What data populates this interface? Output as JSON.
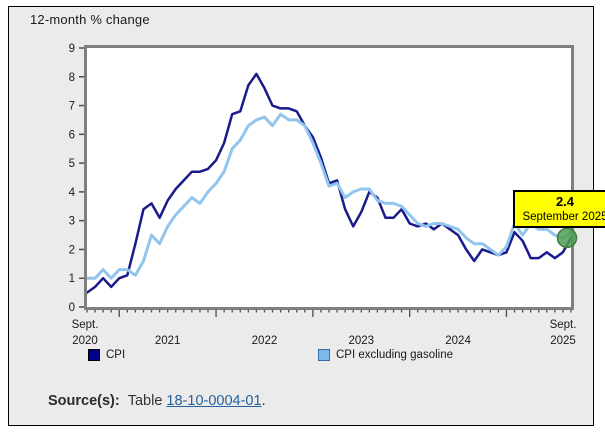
{
  "widget": {
    "title": "12-month % change",
    "background": "#ebebeb"
  },
  "chart_data": {
    "type": "line",
    "title": "12-month % change",
    "x_range": [
      "September 2020",
      "September 2025"
    ],
    "x_start_label": [
      "Sept.",
      "2020"
    ],
    "x_end_label": [
      "Sept.",
      "2025"
    ],
    "year_labels": [
      "2021",
      "2022",
      "2023",
      "2024"
    ],
    "y_ticks": [
      "0",
      "1",
      "2",
      "3",
      "4",
      "5",
      "6",
      "7",
      "8",
      "9"
    ],
    "ylim": [
      0,
      9
    ],
    "grid": false,
    "legend_position": "bottom",
    "series": [
      {
        "name": "CPI",
        "color": "#1a1a8c",
        "width": 2.5,
        "values": [
          0.5,
          0.7,
          1.0,
          0.7,
          1.0,
          1.1,
          2.2,
          3.4,
          3.6,
          3.1,
          3.7,
          4.1,
          4.4,
          4.7,
          4.7,
          4.8,
          5.1,
          5.7,
          6.7,
          6.8,
          7.7,
          8.1,
          7.6,
          7.0,
          6.9,
          6.9,
          6.8,
          6.3,
          5.9,
          5.2,
          4.3,
          4.4,
          3.4,
          2.8,
          3.3,
          4.0,
          3.8,
          3.1,
          3.1,
          3.4,
          2.9,
          2.8,
          2.9,
          2.7,
          2.9,
          2.7,
          2.5,
          2.0,
          1.6,
          2.0,
          1.9,
          1.8,
          1.9,
          2.6,
          2.3,
          1.7,
          1.7,
          1.9,
          1.7,
          1.9,
          2.4
        ]
      },
      {
        "name": "CPI excluding gasoline",
        "color": "#92c5ee",
        "width": 3,
        "values": [
          1.0,
          1.0,
          1.3,
          1.0,
          1.3,
          1.3,
          1.1,
          1.6,
          2.5,
          2.2,
          2.8,
          3.2,
          3.5,
          3.8,
          3.6,
          4.0,
          4.3,
          4.7,
          5.5,
          5.8,
          6.3,
          6.5,
          6.6,
          6.3,
          6.7,
          6.5,
          6.5,
          6.3,
          5.7,
          5.0,
          4.2,
          4.3,
          3.8,
          4.0,
          4.1,
          4.1,
          3.7,
          3.6,
          3.6,
          3.5,
          3.2,
          2.9,
          2.8,
          2.9,
          2.9,
          2.8,
          2.7,
          2.4,
          2.2,
          2.2,
          2.0,
          1.8,
          2.1,
          2.9,
          2.5,
          2.9,
          2.7,
          2.7,
          2.5,
          2.4,
          2.6
        ]
      }
    ],
    "highlight": {
      "value": "2.4",
      "label": "September 2025",
      "marker_color": "#4f9e52",
      "marker_border": "#3c7d3e",
      "tooltip_background": "#ffff00"
    }
  },
  "legend": {
    "items": [
      {
        "label": "CPI",
        "color": "#00008b",
        "border": "#000000"
      },
      {
        "label": "CPI excluding gasoline",
        "color": "#7db9e8",
        "border": "#3a6ea8"
      }
    ]
  },
  "source": {
    "prefix": "Source(s):",
    "text": "Table",
    "link": "18-10-0004-01",
    "suffix": "."
  }
}
